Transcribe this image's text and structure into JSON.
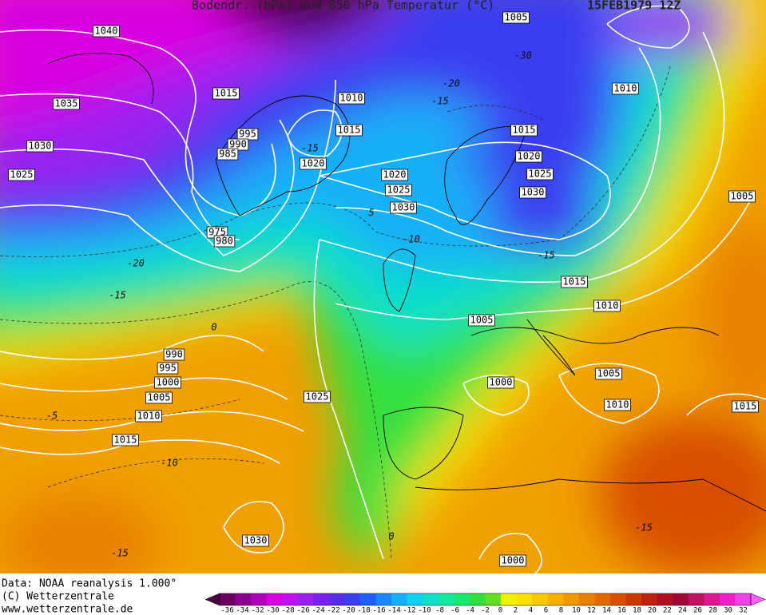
{
  "header": {
    "title": "Bodendr. (hPa) und 850 hPa Temperatur (°C)",
    "date": "15FEB1979 12Z"
  },
  "isobar_labels": [
    "1040",
    "1035",
    "1030",
    "1025",
    "1015",
    "995",
    "990",
    "985",
    "975",
    "980",
    "1010",
    "1015",
    "1020",
    "1020",
    "1025",
    "1030",
    "1015",
    "1020",
    "1025",
    "1030",
    "1010",
    "1005",
    "1015",
    "1010",
    "1005",
    "990",
    "995",
    "1000",
    "1005",
    "1010",
    "1015",
    "1025",
    "1000",
    "1005",
    "1010",
    "1015",
    "1030",
    "1000",
    "1005"
  ],
  "temperature_labels": [
    "-20",
    "-15",
    "-15",
    "-10",
    "-15",
    "-20",
    "-15",
    "0",
    "-5",
    "-10",
    "-15",
    "-15",
    "5",
    "0",
    "-30"
  ],
  "footer": {
    "source": "Data: NOAA reanalysis 1.000°",
    "copyright": "(C) Wetterzentrale",
    "url": "www.wetterzentrale.de"
  },
  "colorbar": {
    "ticks": [
      "-36",
      "-34",
      "-32",
      "-30",
      "-28",
      "-26",
      "-24",
      "-22",
      "-20",
      "-18",
      "-16",
      "-14",
      "-12",
      "-10",
      "-8",
      "-6",
      "-4",
      "-2",
      "0",
      "2",
      "4",
      "6",
      "8",
      "10",
      "12",
      "14",
      "16",
      "18",
      "20",
      "22",
      "24",
      "26",
      "28",
      "30",
      "32"
    ],
    "colors": [
      "#4a0042",
      "#6a0060",
      "#8c0090",
      "#b000b8",
      "#d800e0",
      "#c010f0",
      "#9a20f0",
      "#7a20ee",
      "#5a2ce8",
      "#3a3ef0",
      "#2060f8",
      "#1888f8",
      "#14b0f8",
      "#10d0f0",
      "#10e0c8",
      "#10e8a0",
      "#18e870",
      "#30e040",
      "#60e020",
      "#f0f000",
      "#f8e000",
      "#f8c800",
      "#f8b000",
      "#f09800",
      "#e88000",
      "#e06a00",
      "#d85000",
      "#cc3a00",
      "#c02010",
      "#b01020",
      "#a00838",
      "#c01060",
      "#e01890",
      "#f020c8",
      "#f040e8",
      "#ff60ff"
    ]
  }
}
